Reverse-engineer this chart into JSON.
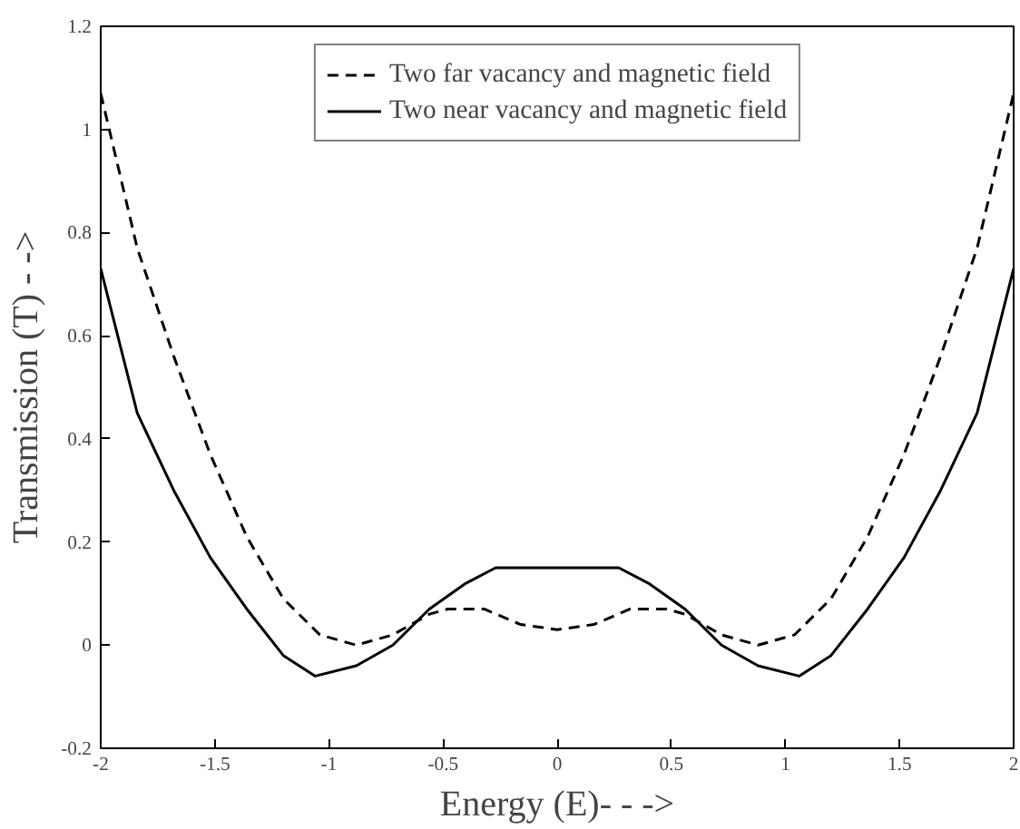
{
  "chart_data": {
    "type": "line",
    "xlabel": "Energy (E)- - ->",
    "ylabel": "Transmission (T) - ->",
    "xlim": [
      -2,
      2
    ],
    "ylim": [
      -0.2,
      1.2
    ],
    "xticks": [
      -2,
      -1.5,
      -1,
      -0.5,
      0,
      0.5,
      1,
      1.5,
      2
    ],
    "yticks": [
      -0.2,
      0,
      0.2,
      0.4,
      0.6,
      0.8,
      1,
      1.2
    ],
    "legend": "top",
    "grid": false,
    "series": [
      {
        "name": "Two far vacancy and magnetic field",
        "color": "#000000",
        "line_style": "dashed",
        "x": [
          -2,
          -1.84,
          -1.68,
          -1.52,
          -1.36,
          -1.2,
          -1.04,
          -0.88,
          -0.72,
          -0.56,
          -0.48,
          -0.32,
          -0.16,
          0,
          0.16,
          0.32,
          0.48,
          0.56,
          0.72,
          0.88,
          1.04,
          1.2,
          1.36,
          1.52,
          1.68,
          1.84,
          2
        ],
        "values": [
          1.07,
          0.77,
          0.56,
          0.37,
          0.21,
          0.09,
          0.02,
          0.0,
          0.02,
          0.06,
          0.07,
          0.07,
          0.04,
          0.03,
          0.04,
          0.07,
          0.07,
          0.06,
          0.02,
          0.0,
          0.02,
          0.09,
          0.21,
          0.37,
          0.56,
          0.77,
          1.07
        ]
      },
      {
        "name": "Two near vacancy and magnetic field",
        "color": "#000000",
        "line_style": "solid",
        "x": [
          -2,
          -1.84,
          -1.68,
          -1.52,
          -1.36,
          -1.2,
          -1.06,
          -0.88,
          -0.72,
          -0.56,
          -0.4,
          -0.27,
          0.27,
          0.4,
          0.56,
          0.72,
          0.88,
          1.06,
          1.2,
          1.36,
          1.52,
          1.68,
          1.84,
          2
        ],
        "values": [
          0.73,
          0.45,
          0.3,
          0.17,
          0.07,
          -0.02,
          -0.06,
          -0.04,
          0.0,
          0.07,
          0.12,
          0.15,
          0.15,
          0.12,
          0.07,
          0.0,
          -0.04,
          -0.06,
          -0.02,
          0.07,
          0.17,
          0.3,
          0.45,
          0.73
        ]
      }
    ]
  }
}
